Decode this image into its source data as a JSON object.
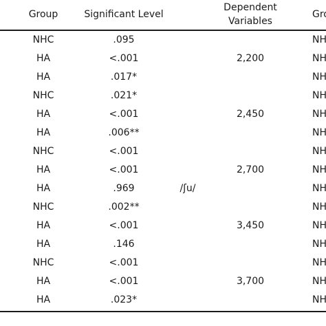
{
  "table": {
    "headers": {
      "group": "Group",
      "significant_level": "Significant Level",
      "dependent_line1": "Dependent",
      "dependent_line2": "Variables",
      "group2_partial": "Gro"
    },
    "phoneme": "/ʃu/",
    "rows": [
      {
        "group": "NHC",
        "sig": ".095",
        "group2": "NH"
      },
      {
        "group": "HA",
        "sig": "<.001",
        "group2": "NH"
      },
      {
        "group": "HA",
        "sig": ".017*",
        "group2": "NH"
      },
      {
        "group": "NHC",
        "sig": ".021*",
        "group2": "NH"
      },
      {
        "group": "HA",
        "sig": "<.001",
        "group2": "NH"
      },
      {
        "group": "HA",
        "sig": ".006**",
        "group2": "NH"
      },
      {
        "group": "NHC",
        "sig": "<.001",
        "group2": "NH"
      },
      {
        "group": "HA",
        "sig": "<.001",
        "group2": "NH"
      },
      {
        "group": "HA",
        "sig": ".969",
        "group2": "NH"
      },
      {
        "group": "NHC",
        "sig": ".002**",
        "group2": "NH"
      },
      {
        "group": "HA",
        "sig": "<.001",
        "group2": "NH"
      },
      {
        "group": "HA",
        "sig": ".146",
        "group2": "NH"
      },
      {
        "group": "NHC",
        "sig": "<.001",
        "group2": "NH"
      },
      {
        "group": "HA",
        "sig": "<.001",
        "group2": "NH"
      },
      {
        "group": "HA",
        "sig": ".023*",
        "group2": "NH"
      }
    ],
    "dependent_values": [
      "2,200",
      "2,450",
      "2,700",
      "3,450",
      "3,700"
    ]
  }
}
